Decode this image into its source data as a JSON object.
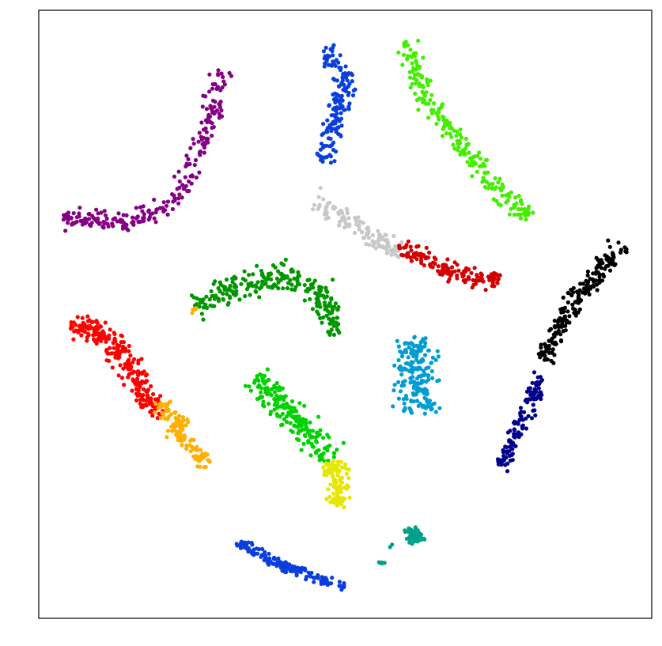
{
  "chart_data": {
    "type": "scatter",
    "title": "",
    "xlabel": "",
    "ylabel": "",
    "xlim": [
      0,
      100
    ],
    "ylim": [
      0,
      100
    ],
    "grid": false,
    "legend": "none",
    "ticks": "none",
    "clusters": [
      {
        "color": "#0a3fdc",
        "n": 160,
        "path": [
          [
            46.4,
            75.1
          ],
          [
            48.5,
            82.6
          ],
          [
            50.3,
            88.6
          ],
          [
            46.8,
            93.4
          ]
        ],
        "width": 1.6
      },
      {
        "color": "#44ee00",
        "n": 220,
        "path": [
          [
            60.0,
            94.9
          ],
          [
            62.8,
            86.2
          ],
          [
            69.1,
            77.6
          ],
          [
            77.1,
            67.8
          ],
          [
            80.4,
            66.3
          ]
        ],
        "width": 1.6
      },
      {
        "color": "#840084",
        "n": 240,
        "path": [
          [
            29.7,
            89.9
          ],
          [
            27.3,
            79.5
          ],
          [
            22.5,
            68.4
          ],
          [
            14.8,
            64.9
          ],
          [
            3.9,
            65.9
          ]
        ],
        "width": 1.6
      },
      {
        "color": "#c8c8c8",
        "n": 120,
        "path": [
          [
            45.1,
            69.0
          ],
          [
            51.0,
            65.1
          ],
          [
            58.9,
            60.2
          ]
        ],
        "width": 1.6
      },
      {
        "color": "#d20000",
        "n": 140,
        "path": [
          [
            58.5,
            61.4
          ],
          [
            63.9,
            58.6
          ],
          [
            69.6,
            56.5
          ],
          [
            75.2,
            55.7
          ]
        ],
        "width": 1.6
      },
      {
        "color": "#009600",
        "n": 250,
        "path": [
          [
            25.7,
            50.8
          ],
          [
            31.3,
            54.1
          ],
          [
            38.9,
            56.8
          ],
          [
            45.0,
            54.5
          ],
          [
            49.3,
            46.7
          ]
        ],
        "width": 2.2
      },
      {
        "color": "#ffaf00",
        "n": 5,
        "path": [
          [
            25.0,
            50.4
          ],
          [
            26.0,
            50.9
          ]
        ],
        "width": 0.4
      },
      {
        "color": "#000000",
        "n": 200,
        "path": [
          [
            82.4,
            42.5
          ],
          [
            85.9,
            49.9
          ],
          [
            91.3,
            56.9
          ],
          [
            95.3,
            61.4
          ]
        ],
        "width": 1.6
      },
      {
        "color": "#00008c",
        "n": 120,
        "path": [
          [
            75.4,
            24.7
          ],
          [
            78.6,
            32.1
          ],
          [
            81.9,
            40.2
          ]
        ],
        "width": 1.3
      },
      {
        "color": "#009cd2",
        "n": 200,
        "path": [
          [
            61.7,
            46.3
          ],
          [
            61.8,
            40.7
          ],
          [
            62.0,
            34.0
          ]
        ],
        "width": 3.5
      },
      {
        "color": "#ff0000",
        "n": 260,
        "path": [
          [
            5.0,
            48.3
          ],
          [
            10.4,
            47.1
          ],
          [
            15.5,
            40.7
          ],
          [
            18.0,
            35.1
          ],
          [
            20.2,
            34.9
          ]
        ],
        "width": 2.0
      },
      {
        "color": "#ffaf00",
        "n": 120,
        "path": [
          [
            19.7,
            35.5
          ],
          [
            23.8,
            30.2
          ],
          [
            27.5,
            25.6
          ]
        ],
        "width": 1.6
      },
      {
        "color": "#00d200",
        "n": 200,
        "path": [
          [
            35.3,
            39.8
          ],
          [
            40.2,
            34.6
          ],
          [
            44.5,
            29.6
          ],
          [
            48.3,
            26.6
          ]
        ],
        "width": 2.3
      },
      {
        "color": "#e6e600",
        "n": 100,
        "path": [
          [
            47.4,
            25.7
          ],
          [
            49.3,
            22.1
          ],
          [
            48.5,
            18.4
          ]
        ],
        "width": 1.8
      },
      {
        "color": "#00a08c",
        "n": 60,
        "path": [
          [
            60.6,
            14.6
          ],
          [
            61.8,
            12.4
          ]
        ],
        "width": 1.3
      },
      {
        "color": "#00a08c",
        "n": 6,
        "path": [
          [
            55.9,
            9.1
          ],
          [
            56.2,
            9.0
          ]
        ],
        "width": 0.25
      },
      {
        "color": "#00a08c",
        "n": 2,
        "path": [
          [
            57.3,
            11.7
          ],
          [
            57.4,
            11.8
          ]
        ],
        "width": 0.1
      },
      {
        "color": "#0a3fdc",
        "n": 150,
        "path": [
          [
            32.5,
            12.4
          ],
          [
            39.2,
            9.0
          ],
          [
            45.8,
            6.4
          ],
          [
            49.7,
            5.3
          ]
        ],
        "width": 0.8
      }
    ]
  }
}
